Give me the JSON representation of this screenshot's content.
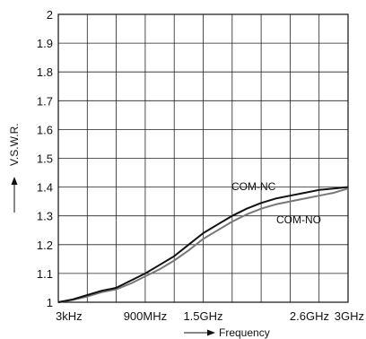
{
  "chart_data": {
    "type": "line",
    "title": "",
    "xlabel": "Frequency",
    "ylabel": "V.S.W.R.",
    "xlim": [
      0,
      3
    ],
    "ylim": [
      1,
      2
    ],
    "grid": true,
    "x_ticks": [
      {
        "value": 0.003,
        "label": "3kHz"
      },
      {
        "value": 0.9,
        "label": "900MHz"
      },
      {
        "value": 1.5,
        "label": "1.5GHz"
      },
      {
        "value": 2.6,
        "label": "2.6GHz"
      },
      {
        "value": 3.0,
        "label": "3GHz"
      }
    ],
    "y_ticks": [
      "1",
      "1.1",
      "1.2",
      "1.3",
      "1.4",
      "1.5",
      "1.6",
      "1.7",
      "1.8",
      "1.9",
      "2"
    ],
    "series": [
      {
        "name": "COM-NC",
        "color": "#111111",
        "x": [
          0.0,
          0.15,
          0.3,
          0.45,
          0.6,
          0.75,
          0.9,
          1.05,
          1.2,
          1.35,
          1.5,
          1.65,
          1.8,
          1.95,
          2.1,
          2.25,
          2.4,
          2.55,
          2.7,
          2.85,
          3.0
        ],
        "y": [
          1.0,
          1.01,
          1.025,
          1.04,
          1.05,
          1.075,
          1.1,
          1.13,
          1.16,
          1.2,
          1.24,
          1.27,
          1.3,
          1.325,
          1.345,
          1.36,
          1.37,
          1.38,
          1.39,
          1.395,
          1.4
        ]
      },
      {
        "name": "COM-NO",
        "color": "#777777",
        "x": [
          0.0,
          0.15,
          0.3,
          0.45,
          0.6,
          0.75,
          0.9,
          1.05,
          1.2,
          1.35,
          1.5,
          1.65,
          1.8,
          1.95,
          2.1,
          2.25,
          2.4,
          2.55,
          2.7,
          2.85,
          3.0
        ],
        "y": [
          1.0,
          1.008,
          1.02,
          1.035,
          1.045,
          1.065,
          1.09,
          1.115,
          1.145,
          1.18,
          1.22,
          1.25,
          1.28,
          1.305,
          1.325,
          1.34,
          1.35,
          1.36,
          1.37,
          1.38,
          1.395
        ]
      }
    ]
  }
}
